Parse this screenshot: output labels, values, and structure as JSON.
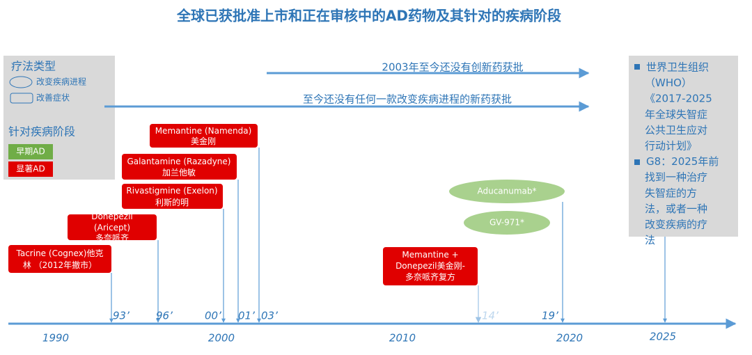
{
  "title": "全球已获批准上市和正在审核中的AD药物及其针对的疾病阶段",
  "legend": {
    "therapy_title": "疗法类型",
    "disease_modifying": "改变疾病进程",
    "symptomatic": "改善症状",
    "stage_title": "针对疾病阶段",
    "early": "早期AD",
    "significant": "显著AD"
  },
  "notes": [
    "2003年至今还没有创新药获批",
    "至今还没有任何一款改变疾病进程的新药获批"
  ],
  "drugs": [
    {
      "lines": [
        "Memantine (Namenda)",
        "美金刚"
      ]
    },
    {
      "lines": [
        "Galantamine (Razadyne)",
        "加兰他敏"
      ]
    },
    {
      "lines": [
        "Rivastigmine (Exelon)",
        "利斯的明"
      ]
    },
    {
      "lines": [
        "Donepezil",
        "(Aricept)",
        "多奈哌齐"
      ]
    },
    {
      "lines": [
        "Tacrine (Cognex)他克",
        "林 （2012年撤市）"
      ]
    },
    {
      "lines": [
        "Memantine +",
        "Donepezil美金刚-",
        "多奈哌齐复方"
      ]
    }
  ],
  "pipeline": [
    "Aducanumab*",
    "GV-971*"
  ],
  "info_panel": {
    "bullets": [
      [
        "世界卫生组织",
        "（WHO）",
        "《2017-2025",
        "年全球失智症",
        "公共卫生应对",
        "行动计划》"
      ],
      [
        "G8：2025年前",
        "找到一种治疗",
        "失智症的方",
        "法，或者一种",
        "改变疾病的疗",
        "法"
      ]
    ]
  },
  "years": [
    "1990",
    "2000",
    "2010",
    "2020",
    "2025"
  ],
  "approvals": [
    "93’",
    "96’",
    "00’",
    "01’",
    "03’",
    "14’",
    "19’"
  ]
}
